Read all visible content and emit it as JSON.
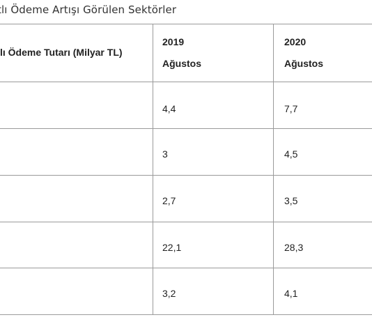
{
  "title": "tlı Ödeme Artışı Görülen Sektörler",
  "table": {
    "header": {
      "col1": "lı Ödeme Tutarı (Milyar TL)",
      "col2": {
        "year": "2019",
        "month": "Ağustos"
      },
      "col3": {
        "year": "2020",
        "month": "Ağustos"
      }
    },
    "rows": [
      {
        "v2019": "4,4",
        "v2020": "7,7"
      },
      {
        "v2019": "3",
        "v2020": "4,5"
      },
      {
        "v2019": "2,7",
        "v2020": "3,5"
      },
      {
        "v2019": "22,1",
        "v2020": "28,3"
      },
      {
        "v2019": "3,2",
        "v2020": "4,1"
      }
    ]
  }
}
